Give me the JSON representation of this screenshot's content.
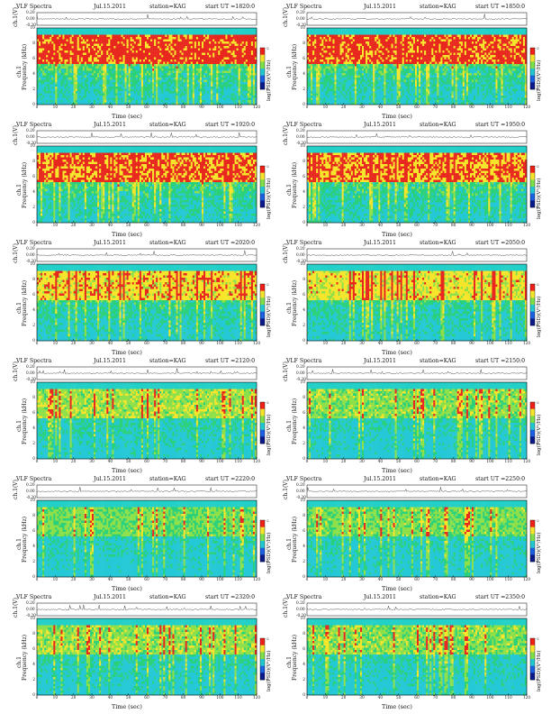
{
  "common": {
    "title_prefix": "VLF Spectra",
    "date": "Jul.15.2011",
    "station": "station=KAG",
    "start_label": "start  UT =",
    "ch_ylabel": "ch.1(V)",
    "ch_ticks": [
      "0.20",
      "0.00",
      "-0.20"
    ],
    "spec_ylabel_chan": "ch.1",
    "spec_ylabel_freq": "Frequency  (kHz)",
    "spec_ticks": [
      "10",
      "8",
      "6",
      "4",
      "2",
      "0"
    ],
    "xlabel": "Time  (sec)",
    "colorbar_label": "log(PSD)(V²/Hz)",
    "colorbar_ticks": [
      "-2",
      "-6"
    ],
    "colors": {
      "band_top": "#22d0c8",
      "saturated": "#e8281e",
      "high": "#f6e52b",
      "mid": "#8ee04a",
      "low": "#2bd17a",
      "quiet": "#24c8d6",
      "deep": "#1a60e0"
    }
  },
  "chart_data": [
    {
      "type": "heatmap",
      "start_ut": "1820:0",
      "intensity": 0.92,
      "x_ticks": [
        "0",
        "10",
        "20",
        "30",
        "40",
        "50",
        "60",
        "70",
        "80",
        "90",
        "100",
        "110",
        "120"
      ],
      "x_range": [
        0,
        120
      ],
      "y_range": [
        0,
        10
      ]
    },
    {
      "type": "heatmap",
      "start_ut": "1850:0",
      "intensity": 0.9,
      "x_ticks": [
        "0",
        "10",
        "20",
        "30",
        "40",
        "50",
        "60",
        "70",
        "80",
        "90",
        "100",
        "110",
        "120"
      ],
      "x_range": [
        0,
        120
      ],
      "y_range": [
        0,
        10
      ]
    },
    {
      "type": "heatmap",
      "start_ut": "1920:0",
      "intensity": 0.86,
      "x_ticks": [
        "0",
        "10",
        "20",
        "30",
        "40",
        "50",
        "60",
        "70",
        "80",
        "90",
        "100",
        "110",
        "120"
      ],
      "x_range": [
        0,
        120
      ],
      "y_range": [
        0,
        10
      ]
    },
    {
      "type": "heatmap",
      "start_ut": "1950:0",
      "intensity": 0.84,
      "x_ticks": [
        "0",
        "10",
        "20",
        "30",
        "40",
        "50",
        "60",
        "70",
        "80",
        "90",
        "100",
        "110",
        "120"
      ],
      "x_range": [
        0,
        120
      ],
      "y_range": [
        0,
        10
      ]
    },
    {
      "type": "heatmap",
      "start_ut": "2020:0",
      "intensity": 0.74,
      "x_ticks": [
        "0",
        "10",
        "20",
        "30",
        "40",
        "50",
        "60",
        "70",
        "80",
        "90",
        "100",
        "110",
        "120"
      ],
      "x_range": [
        0,
        120
      ],
      "y_range": [
        0,
        10
      ]
    },
    {
      "type": "heatmap",
      "start_ut": "2050:0",
      "intensity": 0.7,
      "x_ticks": [
        "0",
        "10",
        "20",
        "30",
        "40",
        "50",
        "60",
        "70",
        "80",
        "90",
        "100",
        "110",
        "120"
      ],
      "x_range": [
        0,
        120
      ],
      "y_range": [
        0,
        10
      ]
    },
    {
      "type": "heatmap",
      "start_ut": "2120:0",
      "intensity": 0.55,
      "x_ticks": [
        "0",
        "10",
        "20",
        "30",
        "40",
        "50",
        "60",
        "70",
        "80",
        "90",
        "100",
        "110",
        "120"
      ],
      "x_range": [
        0,
        120
      ],
      "y_range": [
        0,
        10
      ]
    },
    {
      "type": "heatmap",
      "start_ut": "2150:0",
      "intensity": 0.5,
      "x_ticks": [
        "0",
        "10",
        "20",
        "30",
        "40",
        "50",
        "60",
        "70",
        "80",
        "90",
        "100",
        "110",
        "120"
      ],
      "x_range": [
        0,
        120
      ],
      "y_range": [
        0,
        10
      ]
    },
    {
      "type": "heatmap",
      "start_ut": "2220:0",
      "intensity": 0.45,
      "x_ticks": [
        "0",
        "10",
        "20",
        "30",
        "40",
        "50",
        "60",
        "70",
        "80",
        "90",
        "100",
        "110",
        "120"
      ],
      "x_range": [
        0,
        120
      ],
      "y_range": [
        0,
        10
      ]
    },
    {
      "type": "heatmap",
      "start_ut": "2250:0",
      "intensity": 0.46,
      "x_ticks": [
        "0",
        "10",
        "20",
        "30",
        "40",
        "50",
        "60",
        "70",
        "80",
        "90",
        "100",
        "110",
        "120"
      ],
      "x_range": [
        0,
        120
      ],
      "y_range": [
        0,
        10
      ]
    },
    {
      "type": "heatmap",
      "start_ut": "2320:0",
      "intensity": 0.52,
      "x_ticks": [
        "0",
        "10",
        "20",
        "30",
        "40",
        "50",
        "60",
        "70",
        "80",
        "90",
        "100",
        "110",
        "120"
      ],
      "x_range": [
        0,
        120
      ],
      "y_range": [
        0,
        10
      ]
    },
    {
      "type": "heatmap",
      "start_ut": "2350:0",
      "intensity": 0.5,
      "x_ticks": [
        "0",
        "10",
        "20",
        "30",
        "40",
        "50",
        "60",
        "70",
        "80",
        "90",
        "100",
        "110",
        "120"
      ],
      "x_range": [
        0,
        120
      ],
      "y_range": [
        0,
        10
      ]
    }
  ]
}
